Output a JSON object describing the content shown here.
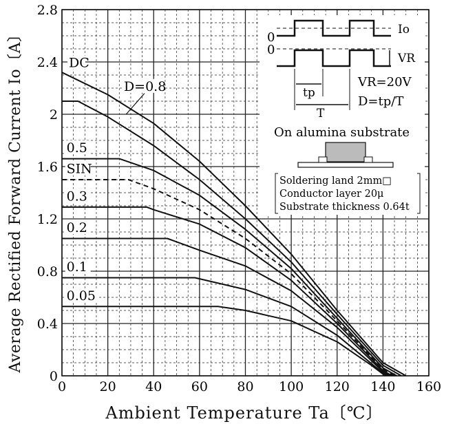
{
  "chart_data": {
    "type": "line",
    "xlabel": "Ambient Temperature  Ta〔℃〕",
    "ylabel": "Average Rectified Forward Current  Io〔A〕",
    "xlim": [
      0,
      160
    ],
    "ylim": [
      0,
      2.8
    ],
    "x_ticks": [
      "0",
      "20",
      "40",
      "60",
      "80",
      "100",
      "120",
      "140",
      "160"
    ],
    "y_ticks": [
      "0",
      "0.4",
      "0.8",
      "1.2",
      "1.6",
      "2",
      "2.4",
      "2.8"
    ],
    "y_tick_values": [
      0,
      0.4,
      0.8,
      1.2,
      1.6,
      2.0,
      2.4,
      2.8
    ],
    "grid": "major solid, minor dashed",
    "series": [
      {
        "name": "DC",
        "style": "solid",
        "points": [
          [
            0,
            2.32
          ],
          [
            20,
            2.15
          ],
          [
            40,
            1.93
          ],
          [
            60,
            1.64
          ],
          [
            80,
            1.3
          ],
          [
            100,
            0.93
          ],
          [
            120,
            0.5
          ],
          [
            140,
            0.1
          ],
          [
            150,
            0
          ]
        ]
      },
      {
        "name": "D=0.8",
        "style": "solid",
        "points": [
          [
            0,
            2.1
          ],
          [
            7,
            2.1
          ],
          [
            20,
            1.98
          ],
          [
            40,
            1.76
          ],
          [
            60,
            1.5
          ],
          [
            80,
            1.2
          ],
          [
            100,
            0.87
          ],
          [
            120,
            0.47
          ],
          [
            140,
            0.08
          ],
          [
            148,
            0
          ]
        ]
      },
      {
        "name": "0.5",
        "style": "solid",
        "points": [
          [
            0,
            1.66
          ],
          [
            25,
            1.66
          ],
          [
            40,
            1.57
          ],
          [
            60,
            1.38
          ],
          [
            80,
            1.12
          ],
          [
            100,
            0.82
          ],
          [
            120,
            0.44
          ],
          [
            140,
            0.06
          ],
          [
            146,
            0
          ]
        ]
      },
      {
        "name": "SIN",
        "style": "dashed",
        "points": [
          [
            0,
            1.5
          ],
          [
            29,
            1.5
          ],
          [
            40,
            1.43
          ],
          [
            60,
            1.27
          ],
          [
            80,
            1.05
          ],
          [
            100,
            0.78
          ],
          [
            120,
            0.42
          ],
          [
            140,
            0.05
          ],
          [
            145,
            0
          ]
        ]
      },
      {
        "name": "0.3",
        "style": "solid",
        "points": [
          [
            0,
            1.29
          ],
          [
            37,
            1.29
          ],
          [
            40,
            1.27
          ],
          [
            60,
            1.16
          ],
          [
            80,
            0.98
          ],
          [
            100,
            0.73
          ],
          [
            120,
            0.4
          ],
          [
            140,
            0.04
          ],
          [
            144,
            0
          ]
        ]
      },
      {
        "name": "0.2",
        "style": "solid",
        "points": [
          [
            0,
            1.05
          ],
          [
            46,
            1.05
          ],
          [
            60,
            0.96
          ],
          [
            80,
            0.84
          ],
          [
            100,
            0.65
          ],
          [
            120,
            0.37
          ],
          [
            140,
            0.03
          ],
          [
            143,
            0
          ]
        ]
      },
      {
        "name": "0.1",
        "style": "solid",
        "points": [
          [
            0,
            0.75
          ],
          [
            58,
            0.75
          ],
          [
            80,
            0.66
          ],
          [
            100,
            0.53
          ],
          [
            120,
            0.31
          ],
          [
            140,
            0.02
          ],
          [
            142,
            0
          ]
        ]
      },
      {
        "name": "0.05",
        "style": "solid",
        "points": [
          [
            0,
            0.53
          ],
          [
            68,
            0.53
          ],
          [
            80,
            0.5
          ],
          [
            100,
            0.42
          ],
          [
            120,
            0.26
          ],
          [
            135,
            0.08
          ],
          [
            141,
            0
          ]
        ]
      }
    ]
  },
  "inset": {
    "io_label": "Io",
    "vr_label": "VR",
    "zero_top": "0",
    "zero_bottom": "0",
    "tp_label": "tp",
    "t_label": "T",
    "vr_value": "VR=20V",
    "duty_formula": "D=tp/T",
    "substrate_title": "On alumina substrate",
    "note_1": "Soldering land 2mm□",
    "note_2": "Conductor layer 20μ",
    "note_3": "Substrate thickness 0.64t"
  },
  "colors": {
    "line": "#111111",
    "grid": "#222222",
    "background": "#ffffff"
  }
}
